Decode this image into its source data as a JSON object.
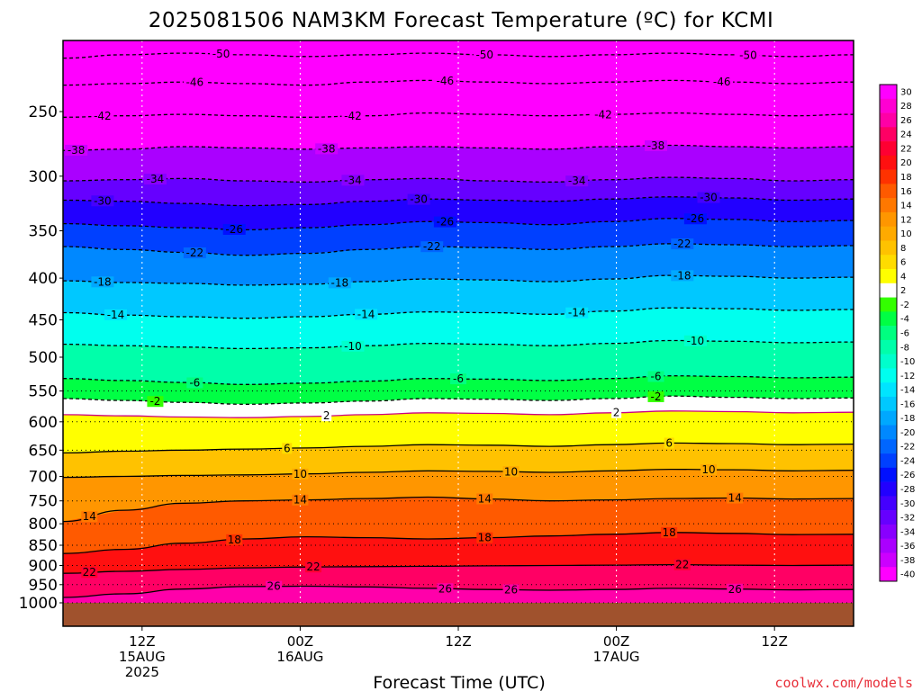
{
  "title": "2025081506 NAM3KM Forecast Temperature (ºC) for KCMI",
  "x_axis": {
    "label": "Forecast Time (UTC)",
    "ticks": [
      {
        "l1": "12Z",
        "l2": "15AUG",
        "l3": "2025",
        "t": 6
      },
      {
        "l1": "00Z",
        "l2": "16AUG",
        "l3": "",
        "t": 18
      },
      {
        "l1": "12Z",
        "l2": "",
        "l3": "",
        "t": 30
      },
      {
        "l1": "00Z",
        "l2": "17AUG",
        "l3": "",
        "t": 42
      },
      {
        "l1": "12Z",
        "l2": "",
        "l3": "",
        "t": 54
      }
    ]
  },
  "y_axis": {
    "ticks": [
      "250",
      "300",
      "350",
      "400",
      "450",
      "500",
      "550",
      "600",
      "650",
      "700",
      "750",
      "800",
      "850",
      "900",
      "950",
      "1000"
    ]
  },
  "credit": "coolwx.com/models",
  "colorbar": {
    "labels": [
      "30",
      "28",
      "26",
      "24",
      "22",
      "20",
      "18",
      "16",
      "14",
      "12",
      "10",
      "8",
      "6",
      "4",
      "2",
      "-2",
      "-4",
      "-6",
      "-8",
      "-10",
      "-12",
      "-14",
      "-16",
      "-18",
      "-20",
      "-22",
      "-24",
      "-26",
      "-28",
      "-30",
      "-32",
      "-34",
      "-36",
      "-38",
      "-40"
    ],
    "colors": [
      "#ff00ff",
      "#ff00d2",
      "#ff00a6",
      "#ff0064",
      "#ff0032",
      "#ff1010",
      "#ff3200",
      "#ff5a00",
      "#ff7800",
      "#ff9600",
      "#ffaa00",
      "#ffc200",
      "#ffdc00",
      "#ffff00",
      "#ffffff",
      "#33ff00",
      "#00ff44",
      "#00ff80",
      "#00ffaa",
      "#00ffcc",
      "#00ffee",
      "#00e4ff",
      "#00c8ff",
      "#00a8ff",
      "#0088ff",
      "#0066ff",
      "#0040ff",
      "#0010ff",
      "#2200ff",
      "#4400ff",
      "#6600ff",
      "#8800ff",
      "#aa00ff",
      "#cc00ff",
      "#ff00ff"
    ]
  },
  "chart_data": {
    "type": "heatmap",
    "x_unit": "forecast hours from 2025-08-15 06Z",
    "x_range": [
      0,
      60
    ],
    "y_unit": "hPa",
    "y_scale": "log",
    "y_range": [
      1000,
      200
    ],
    "contour_interval": 4,
    "contours": [
      {
        "t": -50,
        "p": [
          215,
          213,
          212,
          213,
          214,
          213,
          212,
          213,
          214,
          213,
          212,
          213,
          214,
          213
        ],
        "labels": [
          {
            "t": 12,
            "v": "-50"
          },
          {
            "t": 32,
            "v": "-50"
          },
          {
            "t": 52,
            "v": "-50"
          }
        ]
      },
      {
        "t": -46,
        "p": [
          232,
          231,
          230,
          231,
          232,
          230,
          229,
          230,
          231,
          230,
          229,
          230,
          231,
          230
        ],
        "labels": [
          {
            "t": 10,
            "v": "-46"
          },
          {
            "t": 29,
            "v": "-46"
          },
          {
            "t": 50,
            "v": "-46"
          }
        ]
      },
      {
        "t": -42,
        "p": [
          254,
          253,
          252,
          253,
          254,
          253,
          251,
          252,
          253,
          252,
          251,
          252,
          253,
          252
        ],
        "labels": [
          {
            "t": 3,
            "v": "-42"
          },
          {
            "t": 22,
            "v": "-42"
          },
          {
            "t": 41,
            "v": "-42"
          }
        ]
      },
      {
        "t": -38,
        "p": [
          279,
          278,
          276,
          277,
          278,
          277,
          276,
          277,
          278,
          276,
          275,
          276,
          277,
          276
        ],
        "labels": [
          {
            "t": 1,
            "v": "-38"
          },
          {
            "t": 20,
            "v": "-38"
          },
          {
            "t": 45,
            "v": "-38"
          }
        ]
      },
      {
        "t": -34,
        "p": [
          304,
          303,
          302,
          304,
          305,
          303,
          302,
          304,
          305,
          303,
          301,
          302,
          304,
          303
        ],
        "labels": [
          {
            "t": 7,
            "v": "-34"
          },
          {
            "t": 22,
            "v": "-34"
          },
          {
            "t": 39,
            "v": "-34"
          }
        ]
      },
      {
        "t": -30,
        "p": [
          321,
          322,
          324,
          326,
          325,
          322,
          320,
          321,
          322,
          320,
          318,
          319,
          321,
          320
        ],
        "labels": [
          {
            "t": 3,
            "v": "-30"
          },
          {
            "t": 27,
            "v": "-30"
          },
          {
            "t": 49,
            "v": "-30"
          }
        ]
      },
      {
        "t": -26,
        "p": [
          343,
          345,
          347,
          349,
          347,
          344,
          341,
          342,
          344,
          341,
          338,
          339,
          341,
          340
        ],
        "labels": [
          {
            "t": 13,
            "v": "-26"
          },
          {
            "t": 29,
            "v": "-26"
          },
          {
            "t": 48,
            "v": "-26"
          }
        ]
      },
      {
        "t": -22,
        "p": [
          366,
          369,
          372,
          375,
          373,
          369,
          366,
          367,
          369,
          366,
          363,
          364,
          366,
          365
        ],
        "labels": [
          {
            "t": 10,
            "v": "-22"
          },
          {
            "t": 28,
            "v": "-22"
          },
          {
            "t": 47,
            "v": "-22"
          }
        ]
      },
      {
        "t": -18,
        "p": [
          403,
          405,
          406,
          408,
          407,
          404,
          401,
          402,
          404,
          401,
          397,
          398,
          400,
          399
        ],
        "labels": [
          {
            "t": 3,
            "v": "-18"
          },
          {
            "t": 21,
            "v": "-18"
          },
          {
            "t": 47,
            "v": "-18"
          }
        ]
      },
      {
        "t": -14,
        "p": [
          441,
          444,
          446,
          448,
          446,
          443,
          440,
          441,
          443,
          439,
          435,
          436,
          438,
          437
        ],
        "labels": [
          {
            "t": 4,
            "v": "-14"
          },
          {
            "t": 23,
            "v": "-14"
          },
          {
            "t": 39,
            "v": "-14"
          }
        ]
      },
      {
        "t": -10,
        "p": [
          482,
          484,
          486,
          488,
          487,
          484,
          481,
          482,
          484,
          481,
          477,
          478,
          480,
          479
        ],
        "labels": [
          {
            "t": 22,
            "v": "-10"
          },
          {
            "t": 48,
            "v": "-10"
          }
        ]
      },
      {
        "t": -6,
        "p": [
          531,
          534,
          537,
          540,
          538,
          535,
          531,
          532,
          534,
          531,
          527,
          528,
          530,
          529
        ],
        "labels": [
          {
            "t": 10,
            "v": "-6"
          },
          {
            "t": 30,
            "v": "-6"
          },
          {
            "t": 45,
            "v": "-6"
          }
        ]
      },
      {
        "t": -2,
        "p": [
          562,
          565,
          568,
          571,
          569,
          566,
          562,
          563,
          565,
          562,
          558,
          560,
          562,
          561
        ],
        "labels": [
          {
            "t": 7,
            "v": "-2"
          },
          {
            "t": 45,
            "v": "-2"
          }
        ]
      },
      {
        "t": 2,
        "p": [
          588,
          590,
          592,
          593,
          591,
          588,
          585,
          586,
          588,
          585,
          582,
          583,
          585,
          584
        ],
        "labels": [
          {
            "t": 20,
            "v": "2"
          },
          {
            "t": 42,
            "v": "2"
          }
        ]
      },
      {
        "t": 6,
        "p": [
          655,
          652,
          650,
          648,
          646,
          643,
          640,
          641,
          643,
          640,
          637,
          638,
          640,
          639
        ],
        "labels": [
          {
            "t": 17,
            "v": "6"
          },
          {
            "t": 46,
            "v": "6"
          }
        ]
      },
      {
        "t": 10,
        "p": [
          702,
          700,
          698,
          697,
          695,
          692,
          689,
          690,
          692,
          689,
          686,
          687,
          689,
          688
        ],
        "labels": [
          {
            "t": 18,
            "v": "10"
          },
          {
            "t": 34,
            "v": "10"
          },
          {
            "t": 49,
            "v": "10"
          }
        ]
      },
      {
        "t": 14,
        "p": [
          795,
          770,
          755,
          750,
          748,
          745,
          742,
          746,
          750,
          748,
          745,
          744,
          746,
          745
        ],
        "labels": [
          {
            "t": 2,
            "v": "14"
          },
          {
            "t": 18,
            "v": "14"
          },
          {
            "t": 32,
            "v": "14"
          },
          {
            "t": 51,
            "v": "14"
          }
        ]
      },
      {
        "t": 18,
        "p": [
          870,
          860,
          845,
          835,
          830,
          832,
          835,
          832,
          828,
          824,
          820,
          822,
          825,
          824
        ],
        "labels": [
          {
            "t": 13,
            "v": "18"
          },
          {
            "t": 32,
            "v": "18"
          },
          {
            "t": 46,
            "v": "18"
          }
        ]
      },
      {
        "t": 22,
        "p": [
          920,
          915,
          910,
          906,
          904,
          903,
          902,
          901,
          900,
          899,
          898,
          899,
          900,
          899
        ],
        "labels": [
          {
            "t": 2,
            "v": "22"
          },
          {
            "t": 19,
            "v": "22"
          },
          {
            "t": 47,
            "v": "22"
          }
        ]
      },
      {
        "t": 26,
        "p": [
          985,
          975,
          962,
          955,
          954,
          956,
          960,
          963,
          965,
          963,
          960,
          962,
          964,
          963
        ],
        "labels": [
          {
            "t": 16,
            "v": "26"
          },
          {
            "t": 34,
            "v": "26"
          },
          {
            "t": 51,
            "v": "26"
          },
          {
            "t": 29,
            "v": "26"
          }
        ]
      }
    ]
  }
}
